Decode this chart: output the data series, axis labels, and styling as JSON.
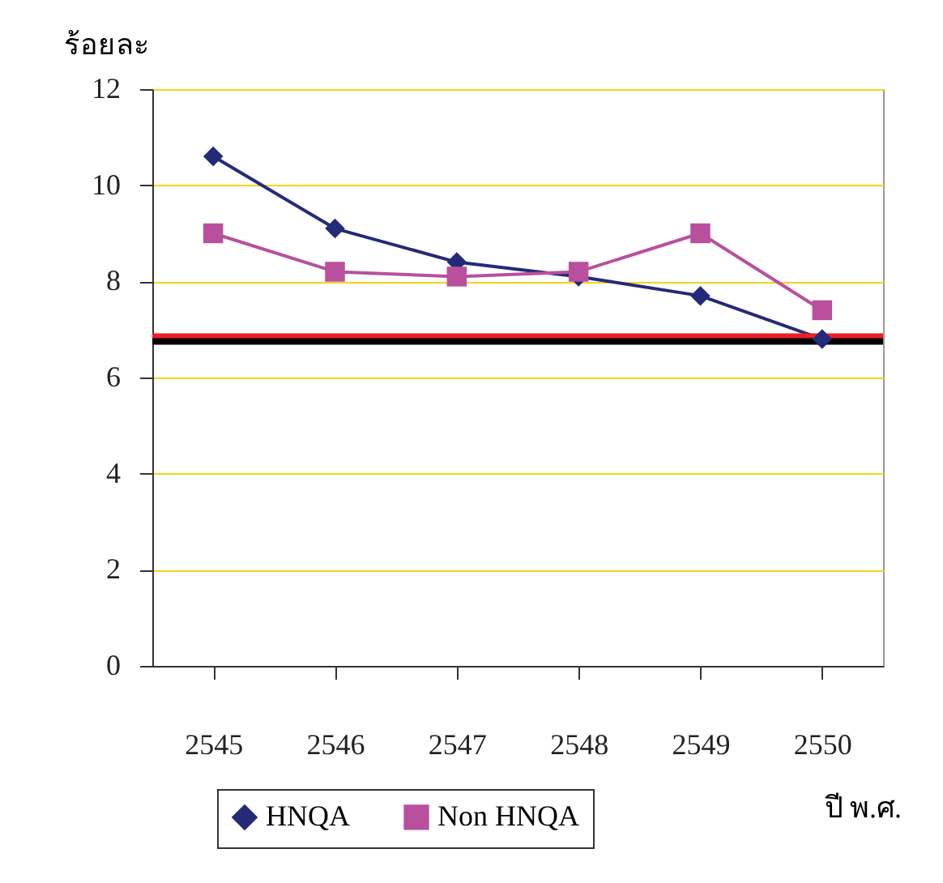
{
  "chart_data": {
    "type": "line",
    "ylabel": "ร้อยละ",
    "xlabel": "ปี พ.ศ.",
    "categories": [
      "2545",
      "2546",
      "2547",
      "2548",
      "2549",
      "2550"
    ],
    "series": [
      {
        "name": "HNQA",
        "color": "#232a78",
        "marker": "diamond",
        "values": [
          10.6,
          9.1,
          8.4,
          8.1,
          7.7,
          6.8
        ]
      },
      {
        "name": "Non HNQA",
        "color": "#b8509e",
        "marker": "square",
        "values": [
          9.0,
          8.2,
          8.1,
          8.2,
          9.0,
          7.4
        ]
      }
    ],
    "ylim": [
      0,
      12
    ],
    "yticks": [
      0,
      2,
      4,
      6,
      8,
      10,
      12
    ],
    "grid": "y",
    "legend": "bottom",
    "ref_lines": [
      {
        "axis": "y",
        "value": 6.85,
        "color": "#ee1c25"
      },
      {
        "axis": "y",
        "value": 6.75,
        "color": "#000000"
      }
    ]
  }
}
